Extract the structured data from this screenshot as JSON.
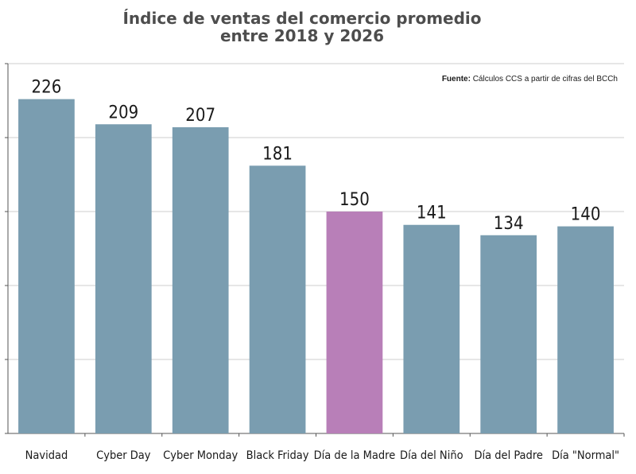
{
  "chart_data": {
    "type": "bar",
    "title": [
      "Índice de ventas del comercio promedio",
      "entre 2018 y 2026"
    ],
    "source_label": "Fuente:",
    "source_text": " Cálculos CCS a partir de cifras del BCCh",
    "categories": [
      "Navidad",
      "Cyber Day",
      "Cyber Monday",
      "Black Friday",
      "Día de la Madre",
      "Día del Niño",
      "Día del Padre",
      "Día \"Normal\""
    ],
    "values": [
      226,
      209,
      207,
      181,
      150,
      141,
      134,
      140
    ],
    "highlight_index": 4,
    "colors": {
      "bar": "#7a9db0",
      "highlight": "#b87fb8",
      "grid": "#cccccc",
      "axis": "#555555"
    },
    "ylim": [
      0,
      250
    ],
    "grid": true,
    "xlabel": "",
    "ylabel": ""
  }
}
